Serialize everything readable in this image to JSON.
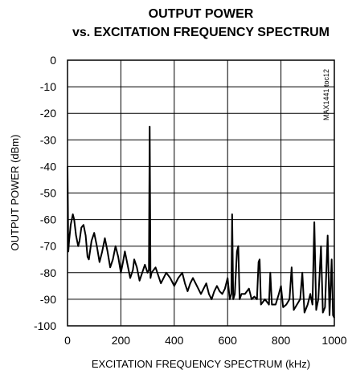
{
  "chart_data": {
    "type": "line",
    "title": "OUTPUT POWER",
    "subtitle": "vs. EXCITATION FREQUENCY SPECTRUM",
    "xlabel": "EXCITATION FREQUENCY SPECTRUM (kHz)",
    "ylabel": "OUTPUT POWER (dBm)",
    "annotation": "MAX1441 toc12",
    "x": [
      0,
      3,
      6,
      12,
      20,
      25,
      32,
      40,
      45,
      52,
      60,
      68,
      75,
      80,
      90,
      100,
      110,
      120,
      130,
      140,
      150,
      160,
      170,
      180,
      190,
      200,
      208,
      215,
      225,
      235,
      245,
      250,
      260,
      270,
      280,
      290,
      300,
      305,
      308,
      311,
      315,
      330,
      350,
      370,
      385,
      400,
      415,
      430,
      440,
      450,
      460,
      470,
      485,
      500,
      510,
      520,
      530,
      540,
      550,
      560,
      570,
      580,
      590,
      600,
      608,
      614,
      617,
      621,
      627,
      635,
      640,
      645,
      652,
      665,
      680,
      690,
      700,
      710,
      716,
      720,
      725,
      740,
      755,
      760,
      766,
      780,
      792,
      800,
      808,
      820,
      832,
      840,
      848,
      860,
      872,
      880,
      888,
      900,
      910,
      918,
      925,
      932,
      940,
      950,
      957,
      965,
      975,
      982,
      990,
      995,
      1000
    ],
    "values": [
      -40,
      -72,
      -68,
      -62,
      -58,
      -60,
      -66,
      -70,
      -68,
      -63,
      -62,
      -66,
      -74,
      -75,
      -68,
      -65,
      -70,
      -76,
      -72,
      -67,
      -72,
      -78,
      -75,
      -70,
      -74,
      -80,
      -76,
      -72,
      -77,
      -82,
      -79,
      -75,
      -78,
      -83,
      -80,
      -77,
      -80,
      -79,
      -25,
      -82,
      -80,
      -78,
      -84,
      -80,
      -82,
      -85,
      -82,
      -80,
      -84,
      -87,
      -84,
      -82,
      -85,
      -88,
      -86,
      -84,
      -88,
      -90,
      -87,
      -85,
      -87,
      -88,
      -86,
      -82,
      -90,
      -88,
      -58,
      -90,
      -88,
      -72,
      -70,
      -90,
      -88,
      -88,
      -86,
      -90,
      -89,
      -90,
      -76,
      -75,
      -92,
      -90,
      -92,
      -80,
      -92,
      -92,
      -88,
      -85,
      -93,
      -92,
      -90,
      -78,
      -94,
      -92,
      -90,
      -80,
      -95,
      -92,
      -88,
      -92,
      -61,
      -94,
      -90,
      -70,
      -95,
      -93,
      -66,
      -96,
      -75,
      -96,
      -97
    ],
    "color": "#000000",
    "xlim": [
      0,
      1000
    ],
    "xticks": [
      0,
      200,
      400,
      600,
      800,
      1000
    ],
    "ylim": [
      -100,
      0
    ],
    "yticks": [
      0,
      -10,
      -20,
      -30,
      -40,
      -50,
      -60,
      -70,
      -80,
      -90,
      -100
    ],
    "grid": true
  }
}
